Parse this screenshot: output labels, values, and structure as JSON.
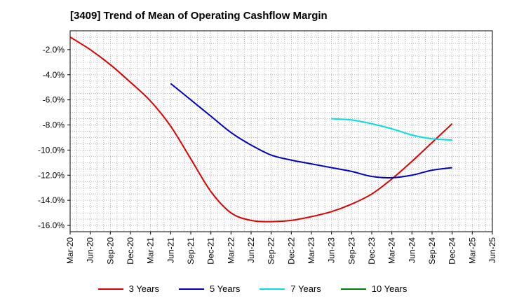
{
  "chart_data": {
    "type": "line",
    "title": "[3409]  Trend of Mean of Operating Cashflow Margin",
    "xlabel": "",
    "ylabel": "",
    "y_tick_labels": [
      "-2.0%",
      "-4.0%",
      "-6.0%",
      "-8.0%",
      "-10.0%",
      "-12.0%",
      "-14.0%",
      "-16.0%"
    ],
    "y_tick_values": [
      -2,
      -4,
      -6,
      -8,
      -10,
      -12,
      -14,
      -16
    ],
    "ylim": [
      -16.5,
      -0.5
    ],
    "x_tick_labels": [
      "Mar-20",
      "Jun-20",
      "Sep-20",
      "Dec-20",
      "Mar-21",
      "Jun-21",
      "Sep-21",
      "Dec-21",
      "Mar-22",
      "Jun-22",
      "Sep-22",
      "Dec-22",
      "Mar-23",
      "Jun-23",
      "Sep-23",
      "Dec-23",
      "Mar-24",
      "Jun-24",
      "Sep-24",
      "Dec-24",
      "Mar-25",
      "Jun-25"
    ],
    "grid": true,
    "legend_position": "bottom",
    "series": [
      {
        "name": "3 Years",
        "color": "#e00000",
        "x": [
          "Mar-20",
          "Jun-20",
          "Sep-20",
          "Dec-20",
          "Mar-21",
          "Jun-21",
          "Sep-21",
          "Dec-21",
          "Mar-22",
          "Jun-22",
          "Sep-22",
          "Dec-22",
          "Mar-23",
          "Jun-23",
          "Sep-23",
          "Dec-23",
          "Mar-24",
          "Jun-24",
          "Sep-24",
          "Dec-24",
          "Mar-25"
        ],
        "values": [
          -1.0,
          -2.0,
          -3.2,
          -4.6,
          -6.1,
          -8.1,
          -10.7,
          -13.3,
          -15.0,
          -15.6,
          -15.7,
          -15.6,
          -15.3,
          -14.9,
          -14.3,
          -13.5,
          -12.3,
          -10.9,
          -9.4,
          -7.9,
          null
        ]
      },
      {
        "name": "5 Years",
        "color": "#0000c0",
        "x": [
          "Mar-20",
          "Jun-20",
          "Sep-20",
          "Dec-20",
          "Mar-21",
          "Jun-21",
          "Sep-21",
          "Dec-21",
          "Mar-22",
          "Jun-22",
          "Sep-22",
          "Dec-22",
          "Mar-23",
          "Jun-23",
          "Sep-23",
          "Dec-23",
          "Mar-24",
          "Jun-24",
          "Sep-24",
          "Dec-24",
          "Mar-25"
        ],
        "values": [
          null,
          null,
          null,
          null,
          null,
          -4.7,
          -6.0,
          -7.3,
          -8.6,
          -9.6,
          -10.4,
          -10.8,
          -11.1,
          -11.4,
          -11.7,
          -12.1,
          -12.2,
          -12.0,
          -11.6,
          -11.4,
          null
        ]
      },
      {
        "name": "7 Years",
        "color": "#00e0e0",
        "x": [
          "Mar-20",
          "Jun-20",
          "Sep-20",
          "Dec-20",
          "Mar-21",
          "Jun-21",
          "Sep-21",
          "Dec-21",
          "Mar-22",
          "Jun-22",
          "Sep-22",
          "Dec-22",
          "Mar-23",
          "Jun-23",
          "Sep-23",
          "Dec-23",
          "Mar-24",
          "Jun-24",
          "Sep-24",
          "Dec-24",
          "Mar-25"
        ],
        "values": [
          null,
          null,
          null,
          null,
          null,
          null,
          null,
          null,
          null,
          null,
          null,
          null,
          null,
          -7.5,
          -7.6,
          -7.9,
          -8.3,
          -8.8,
          -9.1,
          -9.2,
          null
        ]
      },
      {
        "name": "10 Years",
        "color": "#008000",
        "x": [],
        "values": []
      }
    ]
  }
}
